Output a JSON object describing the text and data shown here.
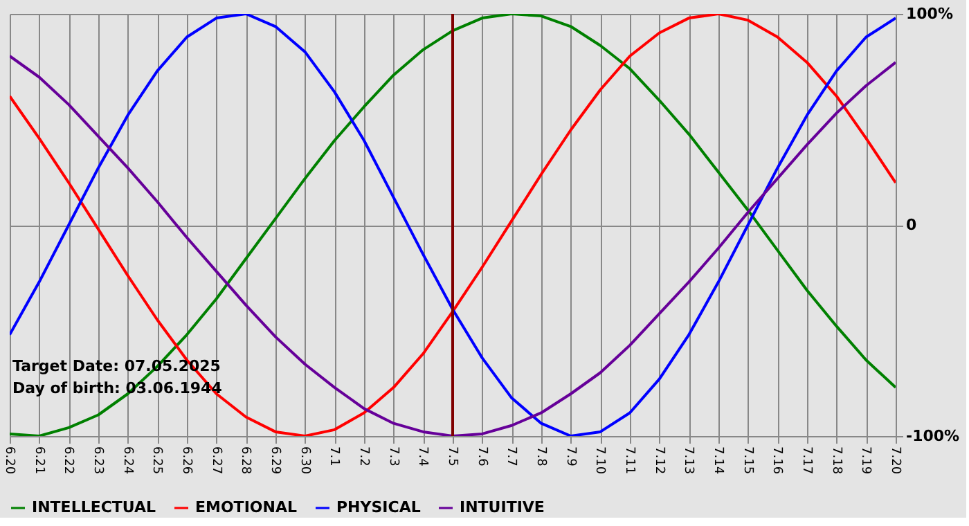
{
  "chart_data": {
    "type": "line",
    "categories": [
      "6.20",
      "6.21",
      "6.22",
      "6.23",
      "6.24",
      "6.25",
      "6.26",
      "6.27",
      "6.28",
      "6.29",
      "6.30",
      "7.1",
      "7.2",
      "7.3",
      "7.4",
      "7.5",
      "7.6",
      "7.7",
      "7.8",
      "7.9",
      "7.10",
      "7.11",
      "7.12",
      "7.13",
      "7.14",
      "7.15",
      "7.16",
      "7.17",
      "7.18",
      "7.19",
      "7.20"
    ],
    "series": [
      {
        "name": "INTELLECTUAL",
        "color": "#008000",
        "values": [
          -99,
          -100,
          -96,
          -90,
          -80,
          -67,
          -52,
          -35,
          -16,
          3,
          22,
          40,
          56,
          71,
          83,
          92,
          98,
          100,
          99,
          94,
          85,
          74,
          59,
          43,
          25,
          7,
          -12,
          -31,
          -48,
          -64,
          -77
        ]
      },
      {
        "name": "EMOTIONAL",
        "color": "#ff0000",
        "values": [
          61,
          41,
          20,
          -2,
          -24,
          -45,
          -64,
          -80,
          -91,
          -98,
          -100,
          -97,
          -89,
          -77,
          -61,
          -41,
          -20,
          2,
          24,
          45,
          64,
          80,
          91,
          98,
          100,
          97,
          89,
          77,
          61,
          41,
          20
        ]
      },
      {
        "name": "PHYSICAL",
        "color": "#0000ff",
        "values": [
          -52,
          -27,
          0,
          27,
          52,
          73,
          89,
          98,
          100,
          94,
          82,
          63,
          40,
          13,
          -14,
          -40,
          -63,
          -82,
          -94,
          -100,
          -98,
          -89,
          -73,
          -52,
          -27,
          0,
          27,
          52,
          73,
          89,
          98
        ]
      },
      {
        "name": "INTUITIVE",
        "color": "#660099",
        "values": [
          80,
          70,
          57,
          42,
          27,
          11,
          -6,
          -22,
          -38,
          -53,
          -66,
          -77,
          -87,
          -94,
          -98,
          -100,
          -99,
          -95,
          -89,
          -80,
          -70,
          -57,
          -42,
          -27,
          -11,
          6,
          22,
          38,
          53,
          66,
          77
        ]
      }
    ],
    "ylim": [
      -100,
      100
    ],
    "yticks": [
      {
        "value": 100,
        "label": "100%"
      },
      0,
      {
        "value": -100,
        "label": "-100%"
      }
    ],
    "ref_lines": [
      {
        "axis": "x",
        "value": "7.5",
        "color": "#800000"
      }
    ],
    "annotations": [
      "Target Date: 07.05.2025",
      "Day of birth: 03.06.1944"
    ],
    "grid": true,
    "legend": "bottom",
    "marker": "none",
    "line_style": "solid"
  }
}
